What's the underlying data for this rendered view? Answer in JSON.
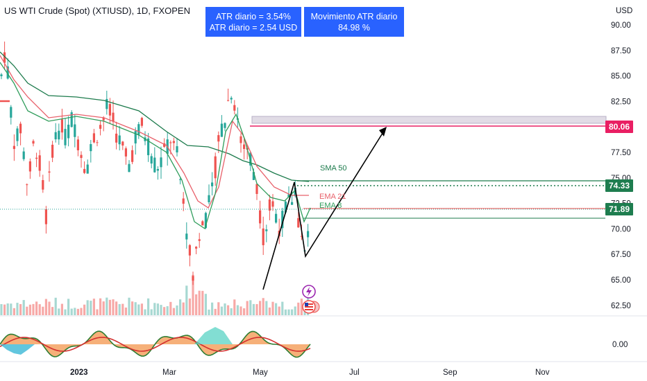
{
  "header": {
    "title": "US WTI Crude (Spot) (XTIUSD), 1D, FXOPEN",
    "atr_left_line1": "ATR diario = 3.54%",
    "atr_left_line2": "ATR diario = 2.54 USD",
    "atr_right_line1": "Movimiento ATR diario",
    "atr_right_line2": "84.98 %"
  },
  "price_axis": {
    "currency": "USD",
    "ticks": [
      "90.00",
      "87.50",
      "85.00",
      "82.50",
      "77.50",
      "75.00",
      "72.50",
      "70.00",
      "67.50",
      "65.00",
      "62.50"
    ],
    "tick_values": [
      90,
      87.5,
      85,
      82.5,
      77.5,
      75,
      72.5,
      70,
      67.5,
      65,
      62.5
    ],
    "price_range": [
      61.5,
      91.2
    ]
  },
  "oscillator_axis": {
    "ticks": [
      "0.00"
    ]
  },
  "time_axis": {
    "labels": [
      "2023",
      "Mar",
      "May",
      "Jul",
      "Sep",
      "Nov"
    ]
  },
  "price_tags": {
    "resistance": "80.06",
    "level_mid": "74.33",
    "last": "71.89"
  },
  "labels": {
    "sma50": "SMA 50",
    "ema21": "EMA 21",
    "ema8": "EMA 8"
  },
  "colors": {
    "up": "#26a69a",
    "down": "#ef5350",
    "sma50": "#1b7a4b",
    "ema21": "#e8606a",
    "ema8": "#2e9c5a",
    "resistance": "#e91e63",
    "accent": "#2962ff",
    "ticker_green": "#1e7d4f",
    "volume_up": "#a7d8d2",
    "volume_down": "#f7a9a7"
  },
  "chart_data": {
    "type": "line",
    "title": "US WTI Crude (Spot) (XTIUSD), 1D, FXOPEN",
    "xlabel": "",
    "ylabel": "USD",
    "ylim": [
      61.5,
      91.2
    ],
    "x": [
      "2023",
      "Mar",
      "May",
      "Jul",
      "Sep",
      "Nov"
    ],
    "series": [
      {
        "name": "SMA 50",
        "approx_values": [
          86.2,
          84.5,
          81.0,
          79.0,
          79.8,
          79.0,
          76.5,
          74.9,
          74.6
        ]
      },
      {
        "name": "EMA 21",
        "approx_values": [
          86.0,
          80.0,
          79.0,
          70.0,
          80.0,
          77.0,
          72.6,
          73.4
        ]
      },
      {
        "name": "EMA 8",
        "approx_values": [
          85.0,
          79.5,
          78.5,
          68.5,
          81.5,
          76.0,
          72.0,
          72.8
        ]
      }
    ],
    "horizontal_levels": [
      80.06,
      74.33,
      71.89,
      74.8,
      71.0
    ],
    "zone": [
      80.3,
      81.0
    ],
    "projection_arrow": {
      "points": [
        [
          65.0,
          68.0
        ],
        [
          74.7,
          68.0
        ],
        [
          79.9,
          71.0
        ]
      ]
    },
    "last_price": 71.89,
    "atr_daily_pct": 3.54,
    "atr_daily_usd": 2.54,
    "atr_movement_pct": 84.98
  }
}
